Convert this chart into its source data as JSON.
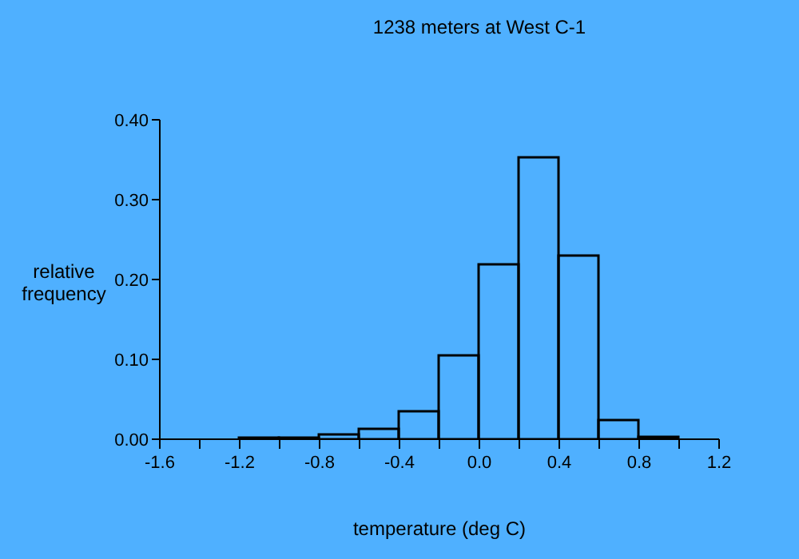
{
  "chart_data": {
    "type": "histogram",
    "title": "1238 meters at West C-1",
    "xlabel": "temperature (deg C)",
    "ylabel": "relative frequency",
    "bins": [
      -1.2,
      -1.0,
      -0.8,
      -0.6,
      -0.4,
      -0.2,
      0.0,
      0.2,
      0.4,
      0.6,
      0.8,
      1.0
    ],
    "values": [
      0.002,
      0.002,
      0.006,
      0.013,
      0.035,
      0.105,
      0.219,
      0.353,
      0.23,
      0.024,
      0.003
    ],
    "color": "#000000",
    "xlim": [
      -1.6,
      1.2
    ],
    "xticks": [
      {
        "value": -1.6,
        "label": "-1.6"
      },
      {
        "value": -1.4,
        "label": null
      },
      {
        "value": -1.2,
        "label": "-1.2"
      },
      {
        "value": -1.0,
        "label": null
      },
      {
        "value": -0.8,
        "label": "-0.8"
      },
      {
        "value": -0.6,
        "label": null
      },
      {
        "value": -0.4,
        "label": "-0.4"
      },
      {
        "value": -0.2,
        "label": null
      },
      {
        "value": 0,
        "label": "0.0"
      },
      {
        "value": 0.2,
        "label": null
      },
      {
        "value": 0.4,
        "label": "0.4"
      },
      {
        "value": 0.6,
        "label": null
      },
      {
        "value": 0.8,
        "label": "0.8"
      },
      {
        "value": 1.0,
        "label": null
      },
      {
        "value": 1.2,
        "label": "1.2"
      }
    ],
    "ylim": [
      0,
      0.4
    ],
    "yticks": [
      {
        "value": 0,
        "label": "0.00"
      },
      {
        "value": 0.1,
        "label": "0.10"
      },
      {
        "value": 0.2,
        "label": "0.20"
      },
      {
        "value": 0.3,
        "label": "0.30"
      },
      {
        "value": 0.4,
        "label": "0.40"
      }
    ]
  }
}
